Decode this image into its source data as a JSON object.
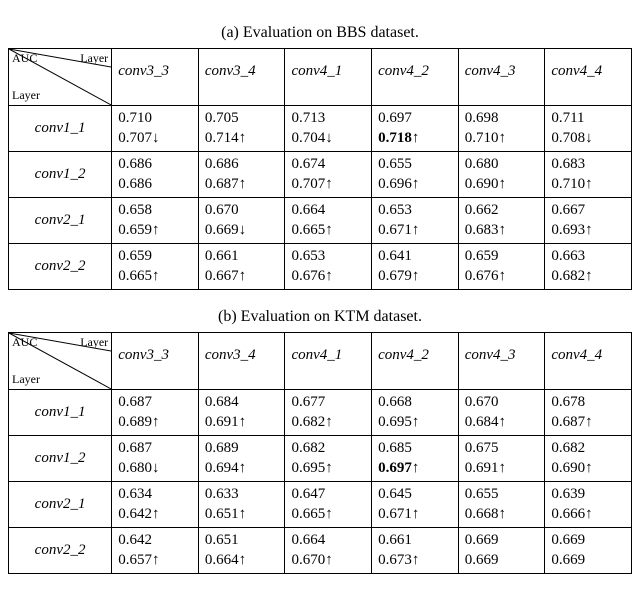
{
  "tables": [
    {
      "caption": "(a) Evaluation on BBS dataset.",
      "diag": {
        "tl": "AUC",
        "tr": "Layer",
        "bl": "Layer"
      },
      "cols": [
        "conv3_3",
        "conv3_4",
        "conv4_1",
        "conv4_2",
        "conv4_3",
        "conv4_4"
      ],
      "rows": [
        {
          "label": "conv1_1",
          "cells": [
            {
              "v1": "0.710",
              "v2": "0.707",
              "arr": "↓",
              "bold": false
            },
            {
              "v1": "0.705",
              "v2": "0.714",
              "arr": "↑",
              "bold": false
            },
            {
              "v1": "0.713",
              "v2": "0.704",
              "arr": "↓",
              "bold": false
            },
            {
              "v1": "0.697",
              "v2": "0.718",
              "arr": "↑",
              "bold": true
            },
            {
              "v1": "0.698",
              "v2": "0.710",
              "arr": "↑",
              "bold": false
            },
            {
              "v1": "0.711",
              "v2": "0.708",
              "arr": "↓",
              "bold": false
            }
          ]
        },
        {
          "label": "conv1_2",
          "cells": [
            {
              "v1": "0.686",
              "v2": "0.686",
              "arr": "",
              "bold": false
            },
            {
              "v1": "0.686",
              "v2": "0.687",
              "arr": "↑",
              "bold": false
            },
            {
              "v1": "0.674",
              "v2": "0.707",
              "arr": "↑",
              "bold": false
            },
            {
              "v1": "0.655",
              "v2": "0.696",
              "arr": "↑",
              "bold": false
            },
            {
              "v1": "0.680",
              "v2": "0.690",
              "arr": "↑",
              "bold": false
            },
            {
              "v1": "0.683",
              "v2": "0.710",
              "arr": "↑",
              "bold": false
            }
          ]
        },
        {
          "label": "conv2_1",
          "cells": [
            {
              "v1": "0.658",
              "v2": "0.659",
              "arr": "↑",
              "bold": false
            },
            {
              "v1": "0.670",
              "v2": "0.669",
              "arr": "↓",
              "bold": false
            },
            {
              "v1": "0.664",
              "v2": "0.665",
              "arr": "↑",
              "bold": false
            },
            {
              "v1": "0.653",
              "v2": "0.671",
              "arr": "↑",
              "bold": false
            },
            {
              "v1": "0.662",
              "v2": "0.683",
              "arr": "↑",
              "bold": false
            },
            {
              "v1": "0.667",
              "v2": "0.693",
              "arr": "↑",
              "bold": false
            }
          ]
        },
        {
          "label": "conv2_2",
          "cells": [
            {
              "v1": "0.659",
              "v2": "0.665",
              "arr": "↑",
              "bold": false
            },
            {
              "v1": "0.661",
              "v2": "0.667",
              "arr": "↑",
              "bold": false
            },
            {
              "v1": "0.653",
              "v2": "0.676",
              "arr": "↑",
              "bold": false
            },
            {
              "v1": "0.641",
              "v2": "0.679",
              "arr": "↑",
              "bold": false
            },
            {
              "v1": "0.659",
              "v2": "0.676",
              "arr": "↑",
              "bold": false
            },
            {
              "v1": "0.663",
              "v2": "0.682",
              "arr": "↑",
              "bold": false
            }
          ]
        }
      ]
    },
    {
      "caption": "(b) Evaluation on KTM dataset.",
      "diag": {
        "tl": "AUC",
        "tr": "Layer",
        "bl": "Layer"
      },
      "cols": [
        "conv3_3",
        "conv3_4",
        "conv4_1",
        "conv4_2",
        "conv4_3",
        "conv4_4"
      ],
      "rows": [
        {
          "label": "conv1_1",
          "cells": [
            {
              "v1": "0.687",
              "v2": "0.689",
              "arr": "↑",
              "bold": false
            },
            {
              "v1": "0.684",
              "v2": "0.691",
              "arr": "↑",
              "bold": false
            },
            {
              "v1": "0.677",
              "v2": "0.682",
              "arr": "↑",
              "bold": false
            },
            {
              "v1": "0.668",
              "v2": "0.695",
              "arr": "↑",
              "bold": false
            },
            {
              "v1": "0.670",
              "v2": "0.684",
              "arr": "↑",
              "bold": false
            },
            {
              "v1": "0.678",
              "v2": "0.687",
              "arr": "↑",
              "bold": false
            }
          ]
        },
        {
          "label": "conv1_2",
          "cells": [
            {
              "v1": "0.687",
              "v2": "0.680",
              "arr": "↓",
              "bold": false
            },
            {
              "v1": "0.689",
              "v2": "0.694",
              "arr": "↑",
              "bold": false
            },
            {
              "v1": "0.682",
              "v2": "0.695",
              "arr": "↑",
              "bold": false
            },
            {
              "v1": "0.685",
              "v2": "0.697",
              "arr": "↑",
              "bold": true
            },
            {
              "v1": "0.675",
              "v2": "0.691",
              "arr": "↑",
              "bold": false
            },
            {
              "v1": "0.682",
              "v2": "0.690",
              "arr": "↑",
              "bold": false
            }
          ]
        },
        {
          "label": "conv2_1",
          "cells": [
            {
              "v1": "0.634",
              "v2": "0.642",
              "arr": "↑",
              "bold": false
            },
            {
              "v1": "0.633",
              "v2": "0.651",
              "arr": "↑",
              "bold": false
            },
            {
              "v1": "0.647",
              "v2": "0.665",
              "arr": "↑",
              "bold": false
            },
            {
              "v1": "0.645",
              "v2": "0.671",
              "arr": "↑",
              "bold": false
            },
            {
              "v1": "0.655",
              "v2": "0.668",
              "arr": "↑",
              "bold": false
            },
            {
              "v1": "0.639",
              "v2": "0.666",
              "arr": "↑",
              "bold": false
            }
          ]
        },
        {
          "label": "conv2_2",
          "cells": [
            {
              "v1": "0.642",
              "v2": "0.657",
              "arr": "↑",
              "bold": false
            },
            {
              "v1": "0.651",
              "v2": "0.664",
              "arr": "↑",
              "bold": false
            },
            {
              "v1": "0.664",
              "v2": "0.670",
              "arr": "↑",
              "bold": false
            },
            {
              "v1": "0.661",
              "v2": "0.673",
              "arr": "↑",
              "bold": false
            },
            {
              "v1": "0.669",
              "v2": "0.669",
              "arr": "",
              "bold": false
            },
            {
              "v1": "0.669",
              "v2": "0.669",
              "arr": "",
              "bold": false
            }
          ]
        }
      ]
    }
  ],
  "style": {
    "font_family": "Times New Roman",
    "font_size_pt": 12,
    "text_color": "#000000",
    "background": "#ffffff",
    "border_color": "#000000",
    "arrow_up": "↑",
    "arrow_down": "↓"
  }
}
